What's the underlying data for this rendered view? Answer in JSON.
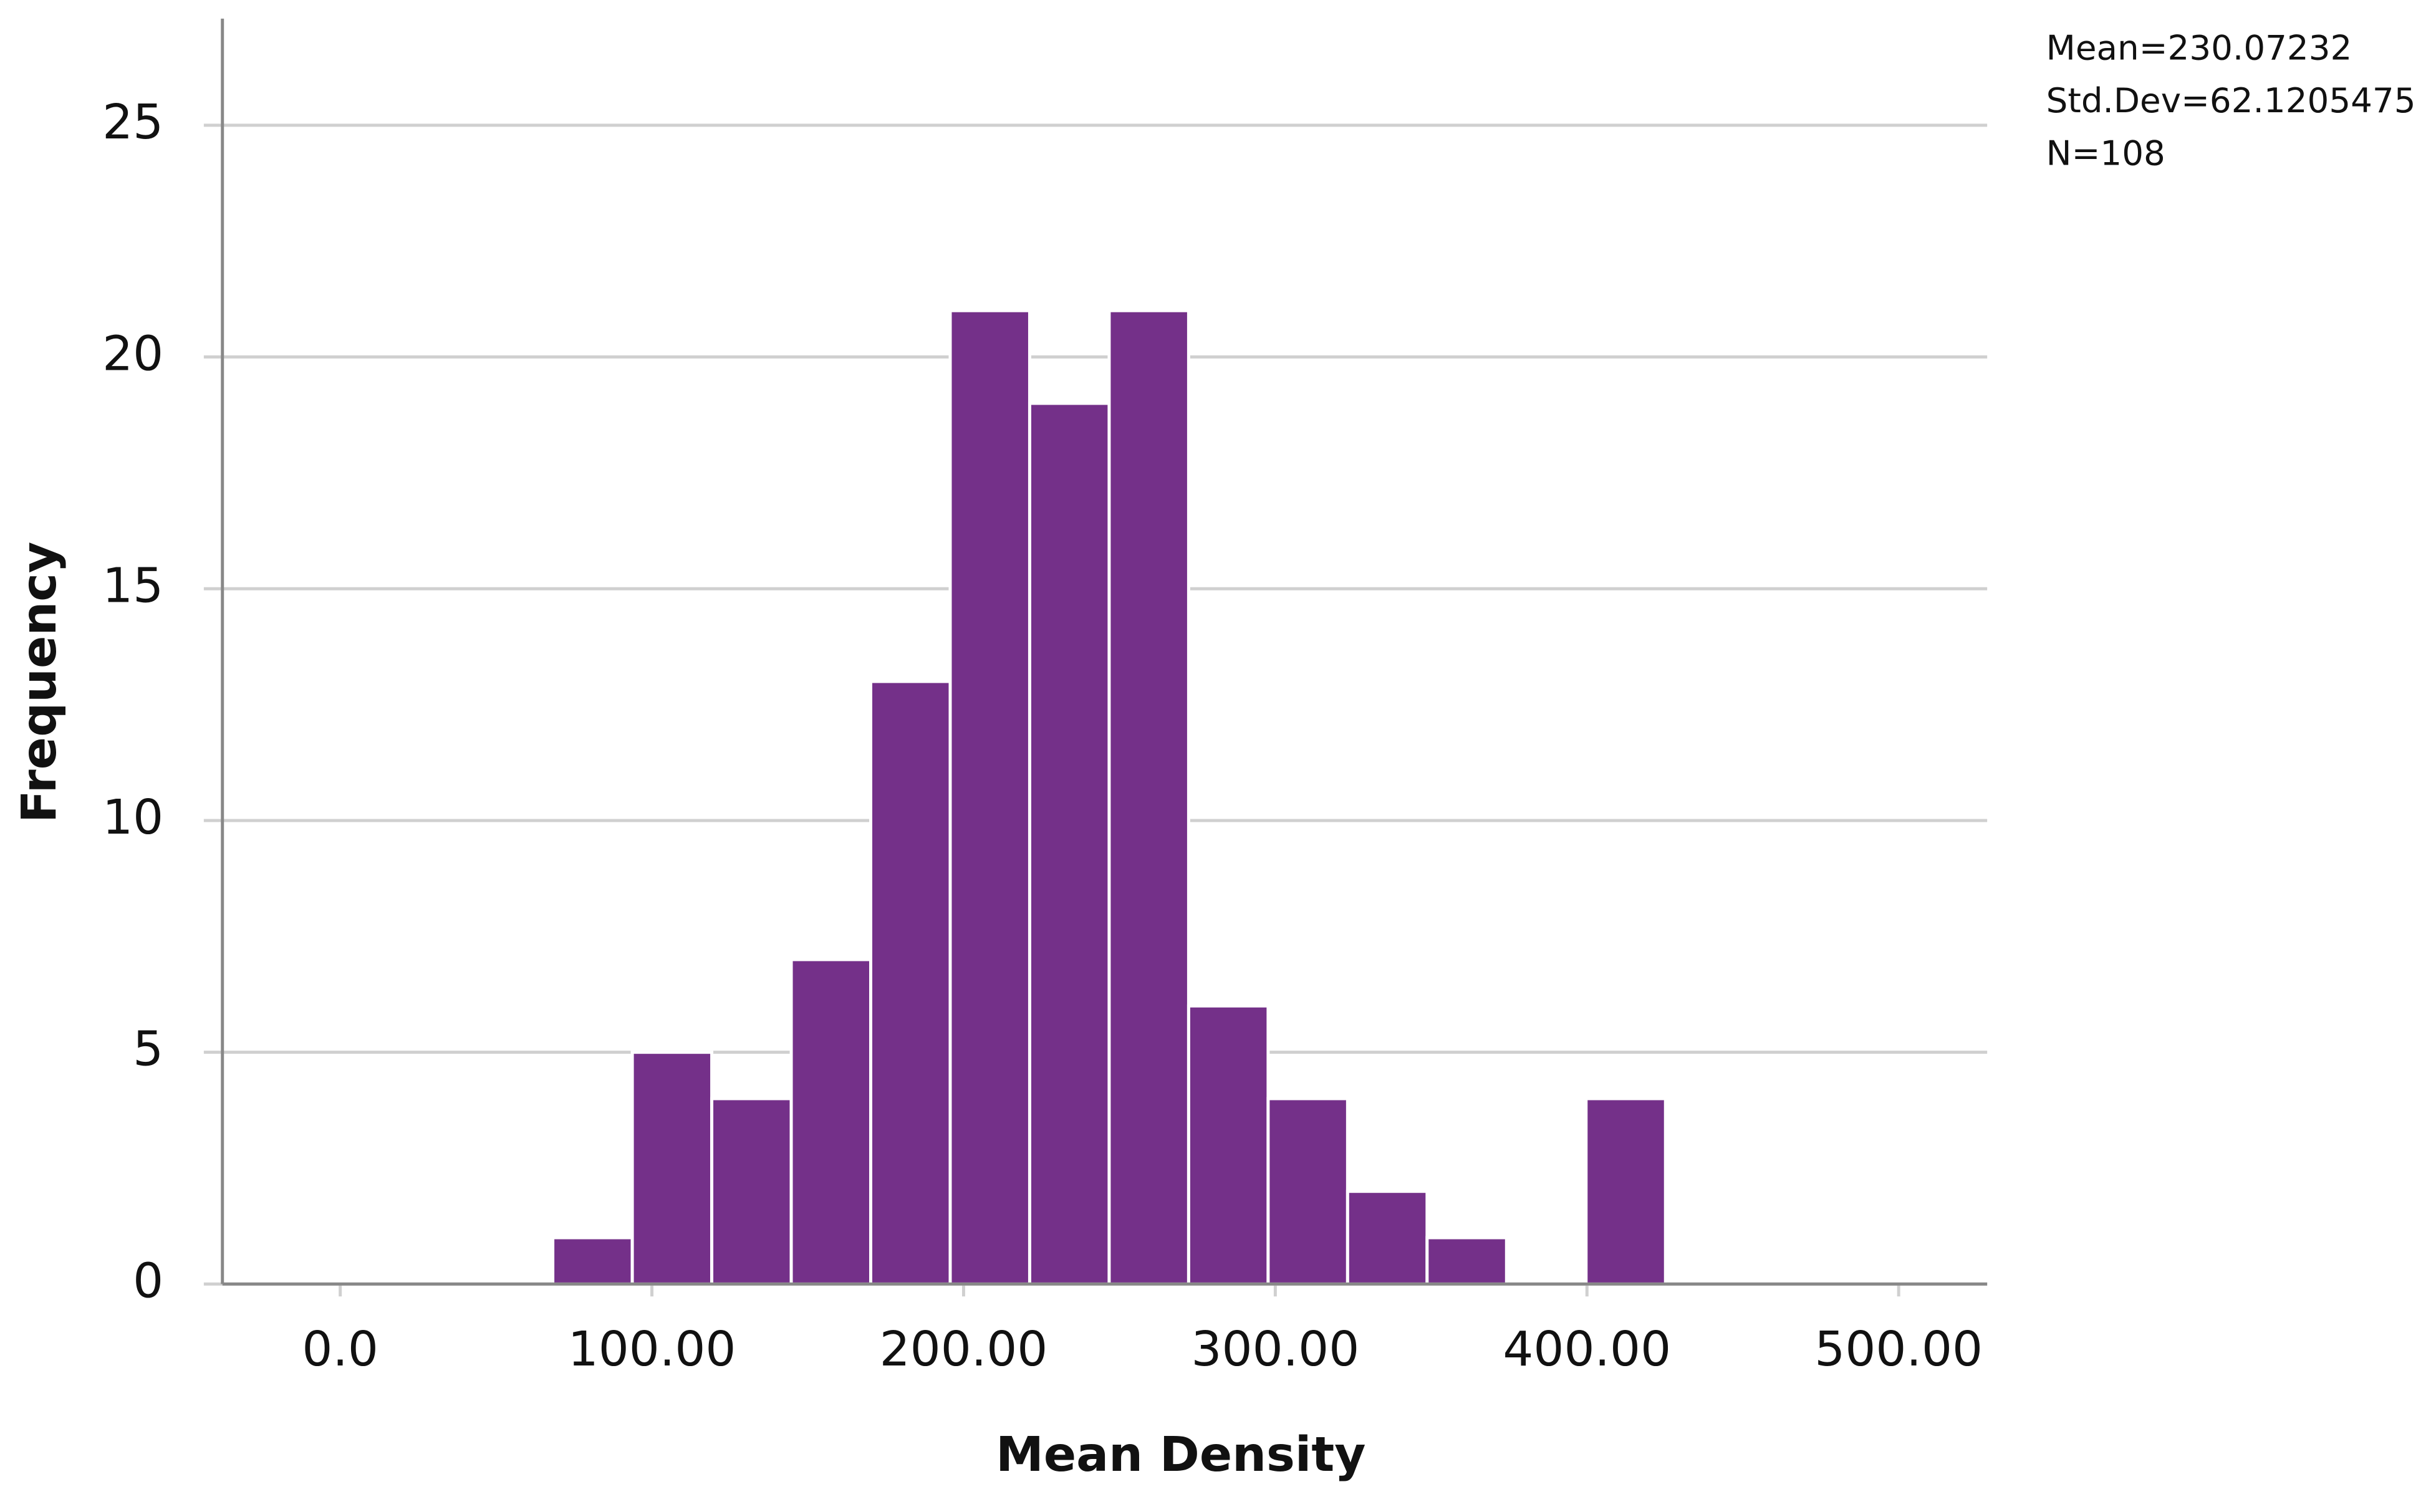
{
  "chart_data": {
    "type": "histogram",
    "x_label": "Mean Density",
    "y_label": "Frequency",
    "annotations": [
      "Mean=230.07232",
      "Std.Dev=62.1205475",
      "N=108"
    ],
    "bins": [
      68.2,
      93.7,
      119.2,
      144.7,
      170.2,
      195.7,
      221.2,
      246.7,
      272.2,
      297.7,
      323.2,
      348.7,
      374.2,
      399.7,
      425.2
    ],
    "values": [
      1,
      5,
      4,
      7,
      13,
      21,
      19,
      21,
      6,
      4,
      2,
      1,
      0,
      4
    ],
    "color": "#743089",
    "xlim": [
      -37.8,
      528.4
    ],
    "xticks": [
      {
        "value": 0,
        "label": "0.0"
      },
      {
        "value": 100,
        "label": "100.00"
      },
      {
        "value": 200,
        "label": "200.00"
      },
      {
        "value": 300,
        "label": "300.00"
      },
      {
        "value": 400,
        "label": "400.00"
      },
      {
        "value": 500,
        "label": "500.00"
      }
    ],
    "ylim": [
      0,
      27.3
    ],
    "yticks": [
      0,
      5,
      10,
      15,
      20,
      25
    ],
    "grid": true
  }
}
